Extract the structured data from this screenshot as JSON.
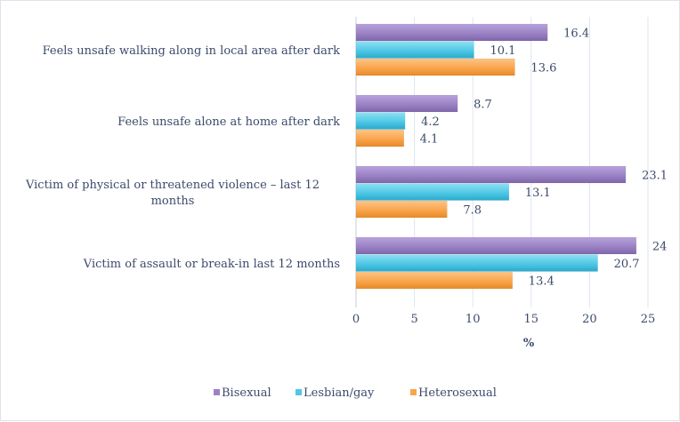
{
  "chart_data": {
    "type": "bar",
    "orientation": "horizontal",
    "categories": [
      "Feels unsafe walking along in local area after dark",
      "Feels unsafe alone at home after dark",
      "Victim of physical or threatened violence – last 12 months",
      "Victim of assault or break-in last 12 months"
    ],
    "category_lines": [
      [
        "Feels unsafe walking along in local area after dark"
      ],
      [
        "Feels unsafe alone at home after dark"
      ],
      [
        "Victim of physical or threatened violence – last 12",
        "months"
      ],
      [
        "Victim of assault or break-in last 12 months"
      ]
    ],
    "series": [
      {
        "name": "Bisexual",
        "values": [
          16.4,
          8.7,
          23.1,
          24
        ],
        "labels": [
          "16.4",
          "8.7",
          "23.1",
          "24"
        ],
        "color": "#9b82c4"
      },
      {
        "name": "Lesbian/gay",
        "values": [
          10.1,
          4.2,
          13.1,
          20.7
        ],
        "labels": [
          "10.1",
          "4.2",
          "13.1",
          "20.7"
        ],
        "color": "#4fc8e6"
      },
      {
        "name": "Heterosexual",
        "values": [
          13.6,
          4.1,
          7.8,
          13.4
        ],
        "labels": [
          "13.6",
          "4.1",
          "7.8",
          "13.4"
        ],
        "color": "#f9a54d"
      }
    ],
    "xlabel": "%",
    "xlim": [
      0,
      25
    ],
    "xticks": [
      0,
      5,
      10,
      15,
      20,
      25
    ],
    "xtick_labels": [
      "0",
      "5",
      "10",
      "15",
      "20",
      "25"
    ],
    "grid": true,
    "legend_position": "bottom"
  }
}
